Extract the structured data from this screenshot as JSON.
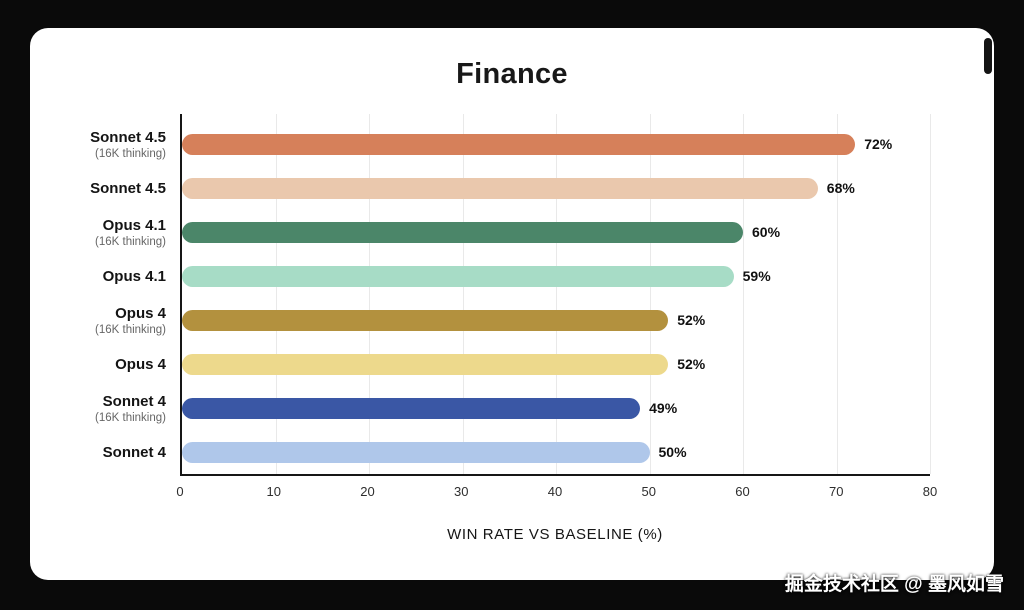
{
  "colors": {
    "page_background": "#0a0a0a",
    "card_background": "#ffffff",
    "axis": "#161616",
    "gridline": "#e9e9e9",
    "value_label": "#111111"
  },
  "chart_data": {
    "type": "bar",
    "orientation": "horizontal",
    "title": "Finance",
    "xlabel": "WIN RATE VS BASELINE (%)",
    "xlim": [
      0,
      80
    ],
    "xticks": [
      0,
      10,
      20,
      30,
      40,
      50,
      60,
      70,
      80
    ],
    "grid": true,
    "legend": "none",
    "categories": [
      {
        "label": "Sonnet 4.5",
        "sublabel": "(16K thinking)",
        "value": 72,
        "display": "72%",
        "color": "#d6805a"
      },
      {
        "label": "Sonnet 4.5",
        "sublabel": "",
        "value": 68,
        "display": "68%",
        "color": "#eac8ad"
      },
      {
        "label": "Opus 4.1",
        "sublabel": "(16K thinking)",
        "value": 60,
        "display": "60%",
        "color": "#4b8669"
      },
      {
        "label": "Opus 4.1",
        "sublabel": "",
        "value": 59,
        "display": "59%",
        "color": "#a7dcc6"
      },
      {
        "label": "Opus 4",
        "sublabel": "(16K thinking)",
        "value": 52,
        "display": "52%",
        "color": "#b3913e"
      },
      {
        "label": "Opus 4",
        "sublabel": "",
        "value": 52,
        "display": "52%",
        "color": "#edd98c"
      },
      {
        "label": "Sonnet 4",
        "sublabel": "(16K thinking)",
        "value": 49,
        "display": "49%",
        "color": "#3a57a5"
      },
      {
        "label": "Sonnet 4",
        "sublabel": "",
        "value": 50,
        "display": "50%",
        "color": "#afc7ea"
      }
    ]
  },
  "watermark": "掘金技术社区 @ 墨风如雪"
}
